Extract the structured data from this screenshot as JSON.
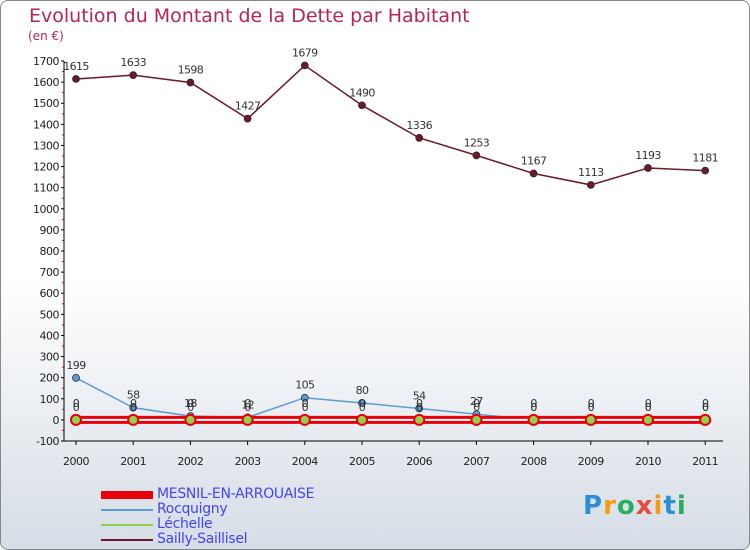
{
  "title": "Evolution du Montant de la Dette par Habitant",
  "unit": "(en €)",
  "brand": "Proxiti",
  "chart_data": {
    "type": "line",
    "x": [
      "2000",
      "2001",
      "2002",
      "2003",
      "2004",
      "2005",
      "2006",
      "2007",
      "2008",
      "2009",
      "2010",
      "2011"
    ],
    "ylim": [
      -100,
      1700
    ],
    "yticks": [
      -100,
      0,
      100,
      200,
      300,
      400,
      500,
      600,
      700,
      800,
      900,
      1000,
      1100,
      1200,
      1300,
      1400,
      1500,
      1600,
      1700
    ],
    "grid": false,
    "legend_position": "bottom-left",
    "series": [
      {
        "name": "MESNIL-EN-ARROUAISE",
        "color": "#e8000b",
        "values": [
          0,
          0,
          0,
          0,
          0,
          0,
          0,
          0,
          0,
          0,
          0,
          0
        ],
        "labels": [
          "0",
          "0",
          "0",
          "0",
          "0",
          "0",
          "0",
          "0",
          "0",
          "0",
          "0",
          "0"
        ]
      },
      {
        "name": "Rocquigny",
        "color": "#5b9bd5",
        "values": [
          199,
          58,
          18,
          12,
          105,
          80,
          54,
          27,
          0,
          0,
          0,
          0
        ],
        "labels": [
          "199",
          "58",
          "18",
          "12",
          "105",
          "80",
          "54",
          "27",
          "0",
          "0",
          "0",
          "0"
        ]
      },
      {
        "name": "Léchelle",
        "color": "#92d050",
        "values": [
          0,
          0,
          0,
          0,
          0,
          0,
          0,
          0,
          0,
          0,
          0,
          0
        ],
        "labels": [
          "0",
          "0",
          "0",
          "0",
          "0",
          "0",
          "0",
          "0",
          "0",
          "0",
          "0",
          "0"
        ]
      },
      {
        "name": "Sailly-Saillisel",
        "color": "#6b1a2a",
        "values": [
          1615,
          1633,
          1598,
          1427,
          1679,
          1490,
          1336,
          1253,
          1167,
          1113,
          1193,
          1181
        ],
        "labels": [
          "1615",
          "1633",
          "1598",
          "1427",
          "1679",
          "1490",
          "1336",
          "1253",
          "1167",
          "1113",
          "1193",
          "1181"
        ]
      }
    ]
  }
}
